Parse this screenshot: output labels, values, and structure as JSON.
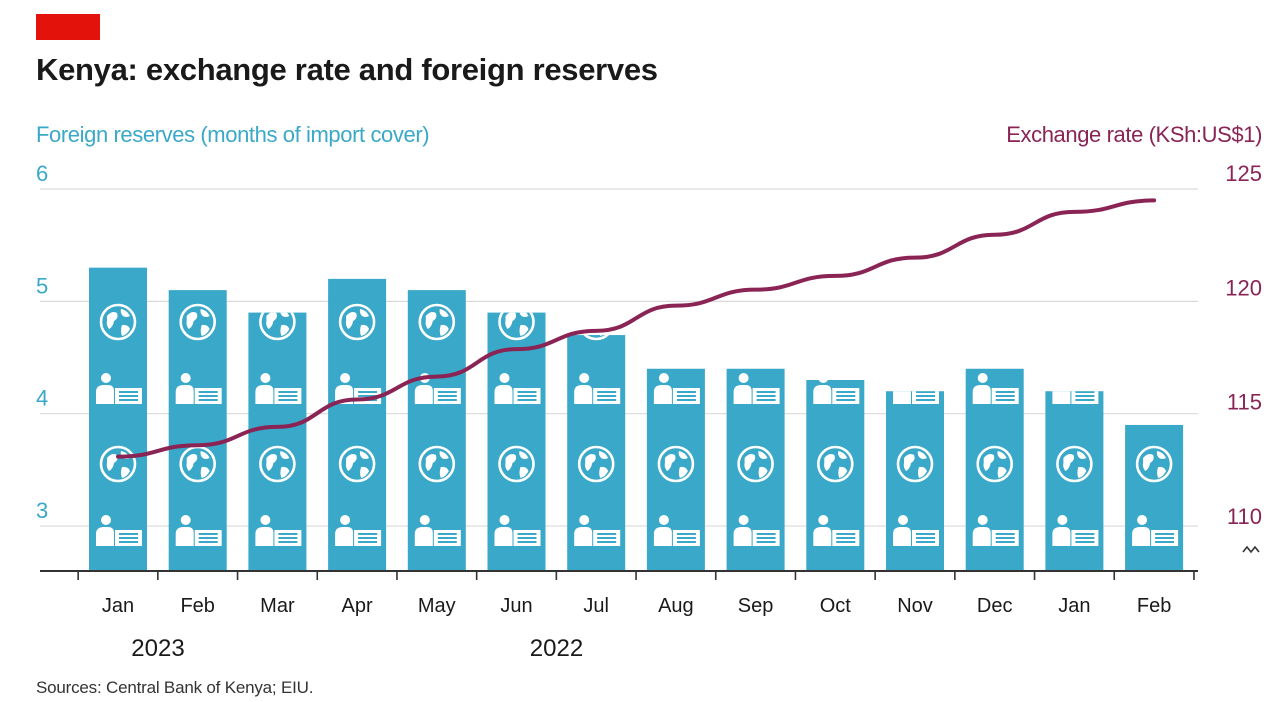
{
  "title": "Kenya: exchange rate and foreign reserves",
  "source": "Sources: Central Bank of Kenya; EIU.",
  "colors": {
    "brand_tag": "#e3120b",
    "reserves": "#3aa8c8",
    "exchange_rate": "#8a2455",
    "grid": "#d9d9d9",
    "axis": "#333333"
  },
  "chart_data": {
    "type": "bar",
    "categories": [
      "Jan",
      "Feb",
      "Mar",
      "Apr",
      "May",
      "Jun",
      "Jul",
      "Aug",
      "Sep",
      "Oct",
      "Nov",
      "Dec",
      "Jan",
      "Feb"
    ],
    "year_labels": [
      {
        "label": "2022",
        "under": "Jun"
      },
      {
        "label": "2023",
        "under": "Jan"
      }
    ],
    "left_axis": {
      "label": "Foreign reserves (months of import cover)",
      "ticks": [
        3,
        4,
        5,
        6
      ],
      "ylim": [
        2.6,
        6
      ]
    },
    "right_axis": {
      "label": "Exchange rate (KSh:US$1)",
      "ticks": [
        110,
        115,
        120,
        125
      ],
      "ylim": [
        108.3,
        125
      ],
      "axis_break": true
    },
    "series": [
      {
        "name": "Foreign reserves (months of import cover)",
        "type": "bar",
        "axis": "left",
        "values": [
          5.3,
          5.1,
          4.9,
          5.2,
          5.1,
          4.9,
          4.7,
          4.4,
          4.4,
          4.3,
          4.2,
          4.4,
          4.2,
          3.9
        ]
      },
      {
        "name": "Exchange rate (KSh:US$1)",
        "type": "line",
        "axis": "right",
        "values": [
          113.3,
          113.8,
          114.6,
          115.8,
          116.8,
          118.0,
          118.8,
          119.9,
          120.6,
          121.2,
          122.0,
          123.0,
          124.0,
          124.5
        ]
      }
    ],
    "grid": true
  }
}
